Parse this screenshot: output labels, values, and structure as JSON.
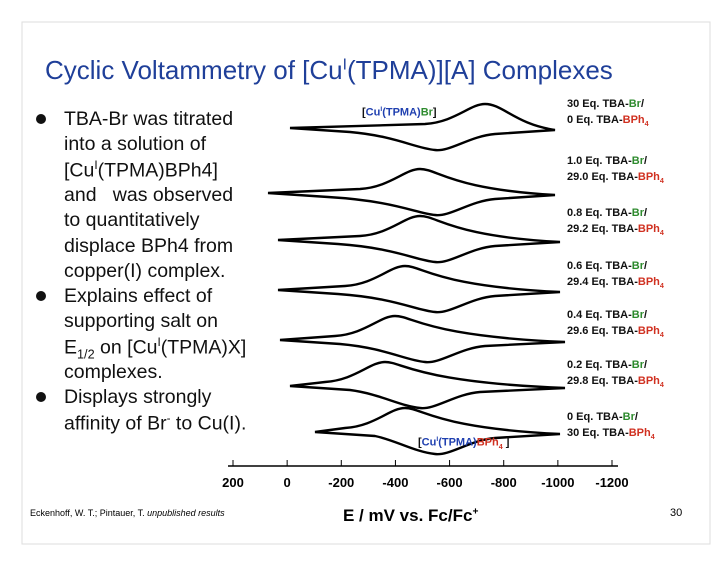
{
  "title": [
    {
      "text": "Cyclic Voltammetry of [Cu"
    },
    {
      "sup": "I"
    },
    {
      "text": "(TPMA)][A] Complexes"
    }
  ],
  "bullets": [
    {
      "lines": [
        [
          {
            "text": "TBA-Br was titrated"
          }
        ],
        [
          {
            "text": "into a solution of"
          }
        ],
        [
          {
            "text": "[Cu"
          },
          {
            "sup": "I"
          },
          {
            "text": "(TPMA)BPh4]"
          }
        ],
        [
          {
            "text": "and   was observed"
          }
        ],
        [
          {
            "text": "to quantitatively"
          }
        ],
        [
          {
            "text": "displace BPh4 from"
          }
        ],
        [
          {
            "text": "copper(I) complex."
          }
        ]
      ]
    },
    {
      "lines": [
        [
          {
            "text": "Explains effect of"
          }
        ],
        [
          {
            "text": "supporting salt on"
          }
        ],
        [
          {
            "text": "E"
          },
          {
            "sub": "1/2"
          },
          {
            "text": " on [Cu"
          },
          {
            "sup": "I"
          },
          {
            "text": "(TPMA)X]"
          }
        ],
        [
          {
            "text": "complexes."
          }
        ]
      ]
    },
    {
      "lines": [
        [
          {
            "text": "Displays strongly"
          }
        ],
        [
          {
            "text": "affinity of Br"
          },
          {
            "sup": "-"
          },
          {
            "text": " to Cu(I)."
          }
        ]
      ]
    }
  ],
  "figure": {
    "species_top": [
      {
        "text": "["
      },
      {
        "text": "Cu",
        "color": "#2040b0"
      },
      {
        "sup": "I",
        "color": "#2040b0"
      },
      {
        "text": "(TPMA)",
        "color": "#2040b0"
      },
      {
        "text": "Br",
        "color": "#2e8b2e"
      },
      {
        "text": "]"
      }
    ],
    "species_bottom": [
      {
        "text": "["
      },
      {
        "text": "Cu",
        "color": "#2040b0"
      },
      {
        "sup": "I",
        "color": "#2040b0"
      },
      {
        "text": "(TPMA)",
        "color": "#2040b0"
      },
      {
        "text": "BPh",
        "color": "#d03020"
      },
      {
        "sub": "4",
        "color": "#d03020"
      },
      {
        "text": " ]"
      }
    ],
    "curve_labels": [
      {
        "lines": [
          [
            {
              "text": "30 Eq. TBA-"
            },
            {
              "text": "Br",
              "color": "#2e8b2e"
            },
            {
              "text": "/"
            }
          ],
          [
            {
              "text": "0 Eq. TBA-"
            },
            {
              "text": "BPh",
              "color": "#d03020"
            },
            {
              "sub": "4",
              "color": "#d03020"
            }
          ]
        ]
      },
      {
        "lines": [
          [
            {
              "text": "1.0 Eq. TBA-"
            },
            {
              "text": "Br",
              "color": "#2e8b2e"
            },
            {
              "text": "/"
            }
          ],
          [
            {
              "text": "29.0 Eq. TBA-"
            },
            {
              "text": "BPh",
              "color": "#d03020"
            },
            {
              "sub": "4",
              "color": "#d03020"
            }
          ]
        ]
      },
      {
        "lines": [
          [
            {
              "text": "0.8 Eq. TBA-"
            },
            {
              "text": "Br",
              "color": "#2e8b2e"
            },
            {
              "text": "/"
            }
          ],
          [
            {
              "text": "29.2 Eq. TBA-"
            },
            {
              "text": "BPh",
              "color": "#d03020"
            },
            {
              "sub": "4",
              "color": "#d03020"
            }
          ]
        ]
      },
      {
        "lines": [
          [
            {
              "text": "0.6 Eq. TBA-"
            },
            {
              "text": "Br",
              "color": "#2e8b2e"
            },
            {
              "text": "/"
            }
          ],
          [
            {
              "text": "29.4 Eq. TBA-"
            },
            {
              "text": "BPh",
              "color": "#d03020"
            },
            {
              "sub": "4",
              "color": "#d03020"
            }
          ]
        ]
      },
      {
        "lines": [
          [
            {
              "text": "0.4 Eq. TBA-"
            },
            {
              "text": "Br",
              "color": "#2e8b2e"
            },
            {
              "text": "/"
            }
          ],
          [
            {
              "text": "29.6 Eq. TBA-"
            },
            {
              "text": "BPh",
              "color": "#d03020"
            },
            {
              "sub": "4",
              "color": "#d03020"
            }
          ]
        ]
      },
      {
        "lines": [
          [
            {
              "text": "0.2 Eq. TBA-"
            },
            {
              "text": "Br",
              "color": "#2e8b2e"
            },
            {
              "text": "/"
            }
          ],
          [
            {
              "text": "29.8 Eq. TBA-"
            },
            {
              "text": "BPh",
              "color": "#d03020"
            },
            {
              "sub": "4",
              "color": "#d03020"
            }
          ]
        ]
      },
      {
        "lines": [
          [
            {
              "text": "0 Eq. TBA-"
            },
            {
              "text": "Br",
              "color": "#2e8b2e"
            },
            {
              "text": "/"
            }
          ],
          [
            {
              "text": "30 Eq. TBA-"
            },
            {
              "text": "BPh",
              "color": "#d03020"
            },
            {
              "sub": "4",
              "color": "#d03020"
            }
          ]
        ]
      }
    ],
    "xticks": [
      200,
      0,
      -200,
      -400,
      -600,
      -800,
      -1000,
      -1200
    ],
    "xlabel": [
      {
        "text": "E / mV vs. Fc/Fc"
      },
      {
        "sup": "+"
      }
    ]
  },
  "citation": [
    {
      "text": "Eckenhoff, W. T.; Pintauer, T. "
    },
    {
      "italic": "unpublished results"
    }
  ],
  "page_number": 30
}
